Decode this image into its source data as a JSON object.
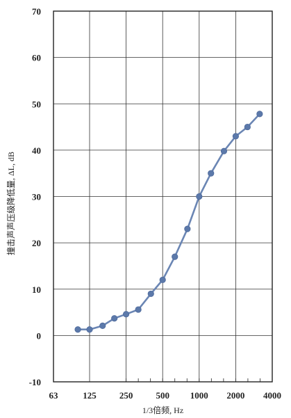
{
  "chart_data": {
    "type": "line",
    "title": "",
    "xlabel": "1/3倍频, Hz",
    "ylabel": "撞击声声压级降低量, ΔL, dB",
    "x_scale": "log",
    "x_tick_labels": [
      "63",
      "125",
      "250",
      "500",
      "1000",
      "2000",
      "4000"
    ],
    "x_tick_values": [
      63,
      125,
      250,
      500,
      1000,
      2000,
      4000
    ],
    "xlim": [
      63,
      4000
    ],
    "ylim": [
      -10,
      70
    ],
    "y_ticks": [
      -10,
      0,
      10,
      20,
      30,
      40,
      50,
      60,
      70
    ],
    "grid": true,
    "colors": {
      "series": "#6b86b4",
      "marker": "#5c79aa",
      "grid": "#333333"
    },
    "series": [
      {
        "x": [
          100,
          125,
          160,
          200,
          250,
          315,
          400,
          500,
          630,
          800,
          1000,
          1250,
          1600,
          2000,
          2500,
          3150
        ],
        "y": [
          1.3,
          1.3,
          2.1,
          3.7,
          4.6,
          5.6,
          9,
          12,
          17,
          23,
          30,
          35,
          39.8,
          43,
          45,
          47.8
        ]
      }
    ]
  }
}
